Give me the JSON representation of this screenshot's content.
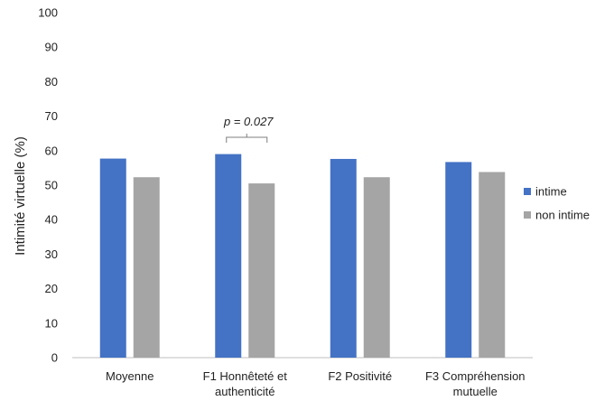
{
  "chart_data": {
    "type": "bar",
    "title": "",
    "xlabel": "",
    "ylabel": "Intimité virtuelle (%)",
    "ylim": [
      0,
      100
    ],
    "yticks": [
      0,
      10,
      20,
      30,
      40,
      50,
      60,
      70,
      80,
      90,
      100
    ],
    "categories": [
      [
        "Moyenne"
      ],
      [
        "F1 Honnêteté et",
        "authenticité"
      ],
      [
        "F2 Positivité"
      ],
      [
        "F3 Compréhension",
        "mutuelle"
      ]
    ],
    "series": [
      {
        "name": "intime",
        "color": "#4472C4",
        "values": [
          57.7,
          59.0,
          57.6,
          56.7
        ]
      },
      {
        "name": "non intime",
        "color": "#A5A5A5",
        "values": [
          52.3,
          50.5,
          52.3,
          53.8
        ]
      }
    ],
    "grid": false,
    "legend": "right",
    "annotation": {
      "text": "p = 0.027",
      "category_index": 1
    }
  }
}
